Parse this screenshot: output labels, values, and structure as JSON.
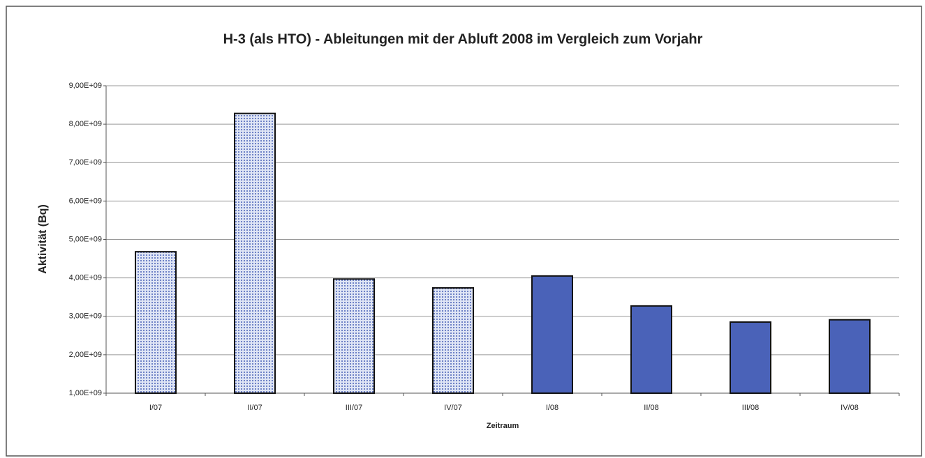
{
  "chart_data": {
    "type": "bar",
    "title": "H-3 (als HTO) - Ableitungen mit der Abluft 2008 im Vergleich zum Vorjahr",
    "x_label": "Zeitraum",
    "y_label": "Aktivität (Bq)",
    "categories": [
      "I/07",
      "II/07",
      "III/07",
      "IV/07",
      "I/08",
      "II/08",
      "III/08",
      "IV/08"
    ],
    "values": [
      4680000000,
      8280000000,
      3970000000,
      3740000000,
      4050000000,
      3270000000,
      2850000000,
      2910000000
    ],
    "bar_fills": [
      "dotted",
      "dotted",
      "dotted",
      "dotted",
      "solid",
      "solid",
      "solid",
      "solid"
    ],
    "color": "#4a62b8",
    "ylim": [
      1000000000,
      9000000000
    ],
    "yticks": [
      {
        "value": 1000000000,
        "label": "1,00E+09"
      },
      {
        "value": 2000000000,
        "label": "2,00E+09"
      },
      {
        "value": 3000000000,
        "label": "3,00E+09"
      },
      {
        "value": 4000000000,
        "label": "4,00E+09"
      },
      {
        "value": 5000000000,
        "label": "5,00E+09"
      },
      {
        "value": 6000000000,
        "label": "6,00E+09"
      },
      {
        "value": 7000000000,
        "label": "7,00E+09"
      },
      {
        "value": 8000000000,
        "label": "8,00E+09"
      },
      {
        "value": 9000000000,
        "label": "9,00E+09"
      }
    ],
    "grid": true
  }
}
